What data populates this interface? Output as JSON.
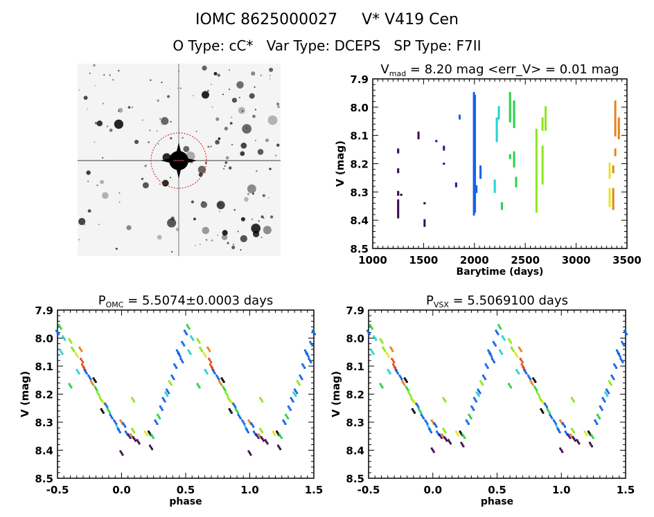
{
  "title": {
    "line1": "IOMC 8625000027     V* V419 Cen",
    "line2": "O Type: cC*   Var Type: DCEPS   SP Type: F7II"
  },
  "image": {
    "description_icon": "star-field-image"
  },
  "palette": {
    "purple": "#3c0a50",
    "navy": "#2a1e96",
    "blue": "#1464e6",
    "cyan": "#28d2d2",
    "green": "#28d246",
    "lime": "#8ce61e",
    "yellow": "#e6e61e",
    "orange": "#e6821e",
    "red": "#e6501e",
    "black": "#000000"
  },
  "chart_data": [
    {
      "type": "scatter",
      "title_main": "V",
      "title_sub": "mad",
      "title_rest": " = 8.20 mag <err_V> = 0.01 mag",
      "xlabel": "Barytime (days)",
      "ylabel": "V (mag)",
      "xlim": [
        1000,
        3500
      ],
      "ylim": [
        8.5,
        7.9
      ],
      "y_inverted": true,
      "xticks": [
        1000,
        1500,
        2000,
        2500,
        3000,
        3500
      ],
      "yticks": [
        "7.9",
        "8.0",
        "8.1",
        "8.2",
        "8.3",
        "8.4",
        "8.5"
      ],
      "segments": [
        {
          "t": 1250,
          "v": [
            8.15,
            8.16
          ],
          "c": "purple"
        },
        {
          "t": 1250,
          "v": [
            8.22,
            8.23
          ],
          "c": "purple"
        },
        {
          "t": 1250,
          "v": [
            8.3,
            8.31
          ],
          "c": "purple"
        },
        {
          "t": 1250,
          "v": [
            8.33,
            8.39
          ],
          "c": "purple"
        },
        {
          "t": 1280,
          "v": [
            8.31,
            8.31
          ],
          "c": "purple"
        },
        {
          "t": 1450,
          "v": [
            8.09,
            8.11
          ],
          "c": "purple"
        },
        {
          "t": 1510,
          "v": [
            8.34,
            8.34
          ],
          "c": "purple"
        },
        {
          "t": 1510,
          "v": [
            8.4,
            8.42
          ],
          "c": "purple"
        },
        {
          "t": 1625,
          "v": [
            8.12,
            8.12
          ],
          "c": "navy"
        },
        {
          "t": 1700,
          "v": [
            8.14,
            8.15
          ],
          "c": "navy"
        },
        {
          "t": 1700,
          "v": [
            8.2,
            8.2
          ],
          "c": "navy"
        },
        {
          "t": 1820,
          "v": [
            8.27,
            8.28
          ],
          "c": "navy"
        },
        {
          "t": 1855,
          "v": [
            8.03,
            8.04
          ],
          "c": "blue"
        },
        {
          "t": 1995,
          "v": [
            7.95,
            8.38
          ],
          "c": "blue"
        },
        {
          "t": 2005,
          "v": [
            7.96,
            8.37
          ],
          "c": "blue"
        },
        {
          "t": 2020,
          "v": [
            8.28,
            8.3
          ],
          "c": "blue"
        },
        {
          "t": 2060,
          "v": [
            8.21,
            8.25
          ],
          "c": "blue"
        },
        {
          "t": 2200,
          "v": [
            8.26,
            8.3
          ],
          "c": "cyan"
        },
        {
          "t": 2220,
          "v": [
            8.04,
            8.12
          ],
          "c": "cyan"
        },
        {
          "t": 2240,
          "v": [
            8.0,
            8.04
          ],
          "c": "cyan"
        },
        {
          "t": 2270,
          "v": [
            8.34,
            8.36
          ],
          "c": "green"
        },
        {
          "t": 2350,
          "v": [
            7.95,
            8.05
          ],
          "c": "green"
        },
        {
          "t": 2350,
          "v": [
            8.17,
            8.18
          ],
          "c": "green"
        },
        {
          "t": 2390,
          "v": [
            7.98,
            8.07
          ],
          "c": "green"
        },
        {
          "t": 2390,
          "v": [
            8.16,
            8.21
          ],
          "c": "green"
        },
        {
          "t": 2410,
          "v": [
            8.25,
            8.28
          ],
          "c": "green"
        },
        {
          "t": 2610,
          "v": [
            8.08,
            8.37
          ],
          "c": "lime"
        },
        {
          "t": 2670,
          "v": [
            8.04,
            8.08
          ],
          "c": "lime"
        },
        {
          "t": 2670,
          "v": [
            8.14,
            8.27
          ],
          "c": "lime"
        },
        {
          "t": 2700,
          "v": [
            8.0,
            8.08
          ],
          "c": "lime"
        },
        {
          "t": 3330,
          "v": [
            8.2,
            8.25
          ],
          "c": "yellow"
        },
        {
          "t": 3330,
          "v": [
            8.29,
            8.35
          ],
          "c": "yellow"
        },
        {
          "t": 3365,
          "v": [
            8.21,
            8.23
          ],
          "c": "orange"
        },
        {
          "t": 3365,
          "v": [
            8.29,
            8.36
          ],
          "c": "orange"
        },
        {
          "t": 3385,
          "v": [
            7.98,
            8.1
          ],
          "c": "orange"
        },
        {
          "t": 3385,
          "v": [
            8.15,
            8.17
          ],
          "c": "orange"
        },
        {
          "t": 3420,
          "v": [
            8.04,
            8.11
          ],
          "c": "orange"
        }
      ]
    },
    {
      "type": "scatter",
      "title_main": "P",
      "title_sub": "OMC",
      "title_rest": " = 5.5074±0.0003 days",
      "xlabel": "phase",
      "ylabel": "V (mag)",
      "xlim": [
        -0.5,
        1.5
      ],
      "ylim": [
        8.5,
        7.9
      ],
      "y_inverted": true,
      "xticks": [
        "-0.5",
        "0.0",
        "0.5",
        "1.0",
        "1.5"
      ],
      "yticks": [
        "7.9",
        "8.0",
        "8.1",
        "8.2",
        "8.3",
        "8.4",
        "8.5"
      ],
      "points": [
        [
          0.5,
          7.98,
          "blue"
        ],
        [
          0.52,
          7.96,
          "green"
        ],
        [
          0.48,
          8.02,
          "blue"
        ],
        [
          0.45,
          8.06,
          "blue"
        ],
        [
          0.47,
          8.08,
          "blue"
        ],
        [
          0.55,
          8.0,
          "cyan"
        ],
        [
          0.53,
          8.05,
          "cyan"
        ],
        [
          0.6,
          8.01,
          "lime"
        ],
        [
          0.62,
          8.04,
          "lime"
        ],
        [
          0.65,
          8.06,
          "yellow"
        ],
        [
          0.68,
          8.04,
          "orange"
        ],
        [
          0.69,
          8.08,
          "red"
        ],
        [
          0.7,
          8.1,
          "red"
        ],
        [
          0.71,
          8.11,
          "red"
        ],
        [
          0.72,
          8.12,
          "blue"
        ],
        [
          0.66,
          8.12,
          "cyan"
        ],
        [
          0.6,
          8.17,
          "green"
        ],
        [
          0.75,
          8.14,
          "blue"
        ],
        [
          0.77,
          8.16,
          "orange"
        ],
        [
          0.79,
          8.15,
          "black"
        ],
        [
          0.8,
          8.18,
          "green"
        ],
        [
          0.82,
          8.2,
          "lime"
        ],
        [
          0.84,
          8.22,
          "lime"
        ],
        [
          0.86,
          8.23,
          "yellow"
        ],
        [
          0.85,
          8.26,
          "black"
        ],
        [
          0.88,
          8.24,
          "blue"
        ],
        [
          0.9,
          8.26,
          "green"
        ],
        [
          0.92,
          8.28,
          "blue"
        ],
        [
          0.95,
          8.3,
          "blue"
        ],
        [
          0.97,
          8.32,
          "cyan"
        ],
        [
          0.98,
          8.33,
          "blue"
        ],
        [
          0.0,
          8.3,
          "orange"
        ],
        [
          0.02,
          8.31,
          "blue"
        ],
        [
          0.04,
          8.34,
          "blue"
        ],
        [
          0.06,
          8.35,
          "navy"
        ],
        [
          0.08,
          8.35,
          "orange"
        ],
        [
          0.09,
          8.33,
          "lime"
        ],
        [
          0.1,
          8.36,
          "purple"
        ],
        [
          0.13,
          8.37,
          "purple"
        ],
        [
          0.0,
          8.41,
          "purple"
        ],
        [
          0.19,
          8.34,
          "yellow"
        ],
        [
          0.22,
          8.34,
          "black"
        ],
        [
          0.24,
          8.35,
          "green"
        ],
        [
          0.23,
          8.39,
          "purple"
        ],
        [
          0.09,
          8.22,
          "lime"
        ],
        [
          0.29,
          8.28,
          "green"
        ],
        [
          0.31,
          8.25,
          "blue"
        ],
        [
          0.33,
          8.22,
          "blue"
        ],
        [
          0.36,
          8.19,
          "blue"
        ],
        [
          0.38,
          8.16,
          "lime"
        ],
        [
          0.4,
          8.14,
          "blue"
        ],
        [
          0.42,
          8.1,
          "blue"
        ],
        [
          0.44,
          8.05,
          "blue"
        ],
        [
          0.35,
          8.2,
          "cyan"
        ],
        [
          0.27,
          8.3,
          "blue"
        ]
      ]
    },
    {
      "type": "scatter",
      "title_main": "P",
      "title_sub": "VSX",
      "title_rest": " = 5.5069100 days",
      "xlabel": "phase",
      "ylabel": "V (mag)",
      "xlim": [
        -0.5,
        1.5
      ],
      "ylim": [
        8.5,
        7.9
      ],
      "y_inverted": true,
      "xticks": [
        "-0.5",
        "0.0",
        "0.5",
        "1.0",
        "1.5"
      ],
      "yticks": [
        "7.9",
        "8.0",
        "8.1",
        "8.2",
        "8.3",
        "8.4",
        "8.5"
      ],
      "points": [
        [
          0.5,
          7.98,
          "blue"
        ],
        [
          0.52,
          7.96,
          "green"
        ],
        [
          0.48,
          8.02,
          "blue"
        ],
        [
          0.45,
          8.06,
          "blue"
        ],
        [
          0.47,
          8.08,
          "blue"
        ],
        [
          0.55,
          8.0,
          "cyan"
        ],
        [
          0.53,
          8.05,
          "cyan"
        ],
        [
          0.6,
          8.01,
          "lime"
        ],
        [
          0.62,
          8.04,
          "lime"
        ],
        [
          0.65,
          8.06,
          "yellow"
        ],
        [
          0.68,
          8.04,
          "orange"
        ],
        [
          0.69,
          8.08,
          "red"
        ],
        [
          0.7,
          8.1,
          "red"
        ],
        [
          0.71,
          8.11,
          "red"
        ],
        [
          0.72,
          8.12,
          "blue"
        ],
        [
          0.66,
          8.12,
          "cyan"
        ],
        [
          0.6,
          8.17,
          "green"
        ],
        [
          0.75,
          8.14,
          "blue"
        ],
        [
          0.77,
          8.16,
          "orange"
        ],
        [
          0.79,
          8.15,
          "black"
        ],
        [
          0.8,
          8.18,
          "green"
        ],
        [
          0.82,
          8.2,
          "lime"
        ],
        [
          0.84,
          8.22,
          "lime"
        ],
        [
          0.86,
          8.23,
          "yellow"
        ],
        [
          0.85,
          8.26,
          "black"
        ],
        [
          0.88,
          8.24,
          "blue"
        ],
        [
          0.9,
          8.26,
          "green"
        ],
        [
          0.92,
          8.28,
          "blue"
        ],
        [
          0.95,
          8.3,
          "blue"
        ],
        [
          0.97,
          8.32,
          "cyan"
        ],
        [
          0.98,
          8.33,
          "blue"
        ],
        [
          0.0,
          8.3,
          "orange"
        ],
        [
          0.02,
          8.31,
          "blue"
        ],
        [
          0.04,
          8.34,
          "blue"
        ],
        [
          0.06,
          8.35,
          "navy"
        ],
        [
          0.08,
          8.35,
          "orange"
        ],
        [
          0.09,
          8.33,
          "lime"
        ],
        [
          0.1,
          8.36,
          "purple"
        ],
        [
          0.13,
          8.37,
          "purple"
        ],
        [
          0.0,
          8.4,
          "purple"
        ],
        [
          0.19,
          8.34,
          "yellow"
        ],
        [
          0.22,
          8.34,
          "black"
        ],
        [
          0.24,
          8.35,
          "green"
        ],
        [
          0.23,
          8.38,
          "purple"
        ],
        [
          0.09,
          8.22,
          "lime"
        ],
        [
          0.29,
          8.28,
          "green"
        ],
        [
          0.31,
          8.25,
          "blue"
        ],
        [
          0.33,
          8.22,
          "blue"
        ],
        [
          0.36,
          8.19,
          "blue"
        ],
        [
          0.38,
          8.16,
          "lime"
        ],
        [
          0.4,
          8.14,
          "blue"
        ],
        [
          0.42,
          8.1,
          "blue"
        ],
        [
          0.44,
          8.05,
          "blue"
        ],
        [
          0.35,
          8.2,
          "cyan"
        ],
        [
          0.27,
          8.3,
          "blue"
        ]
      ]
    }
  ]
}
